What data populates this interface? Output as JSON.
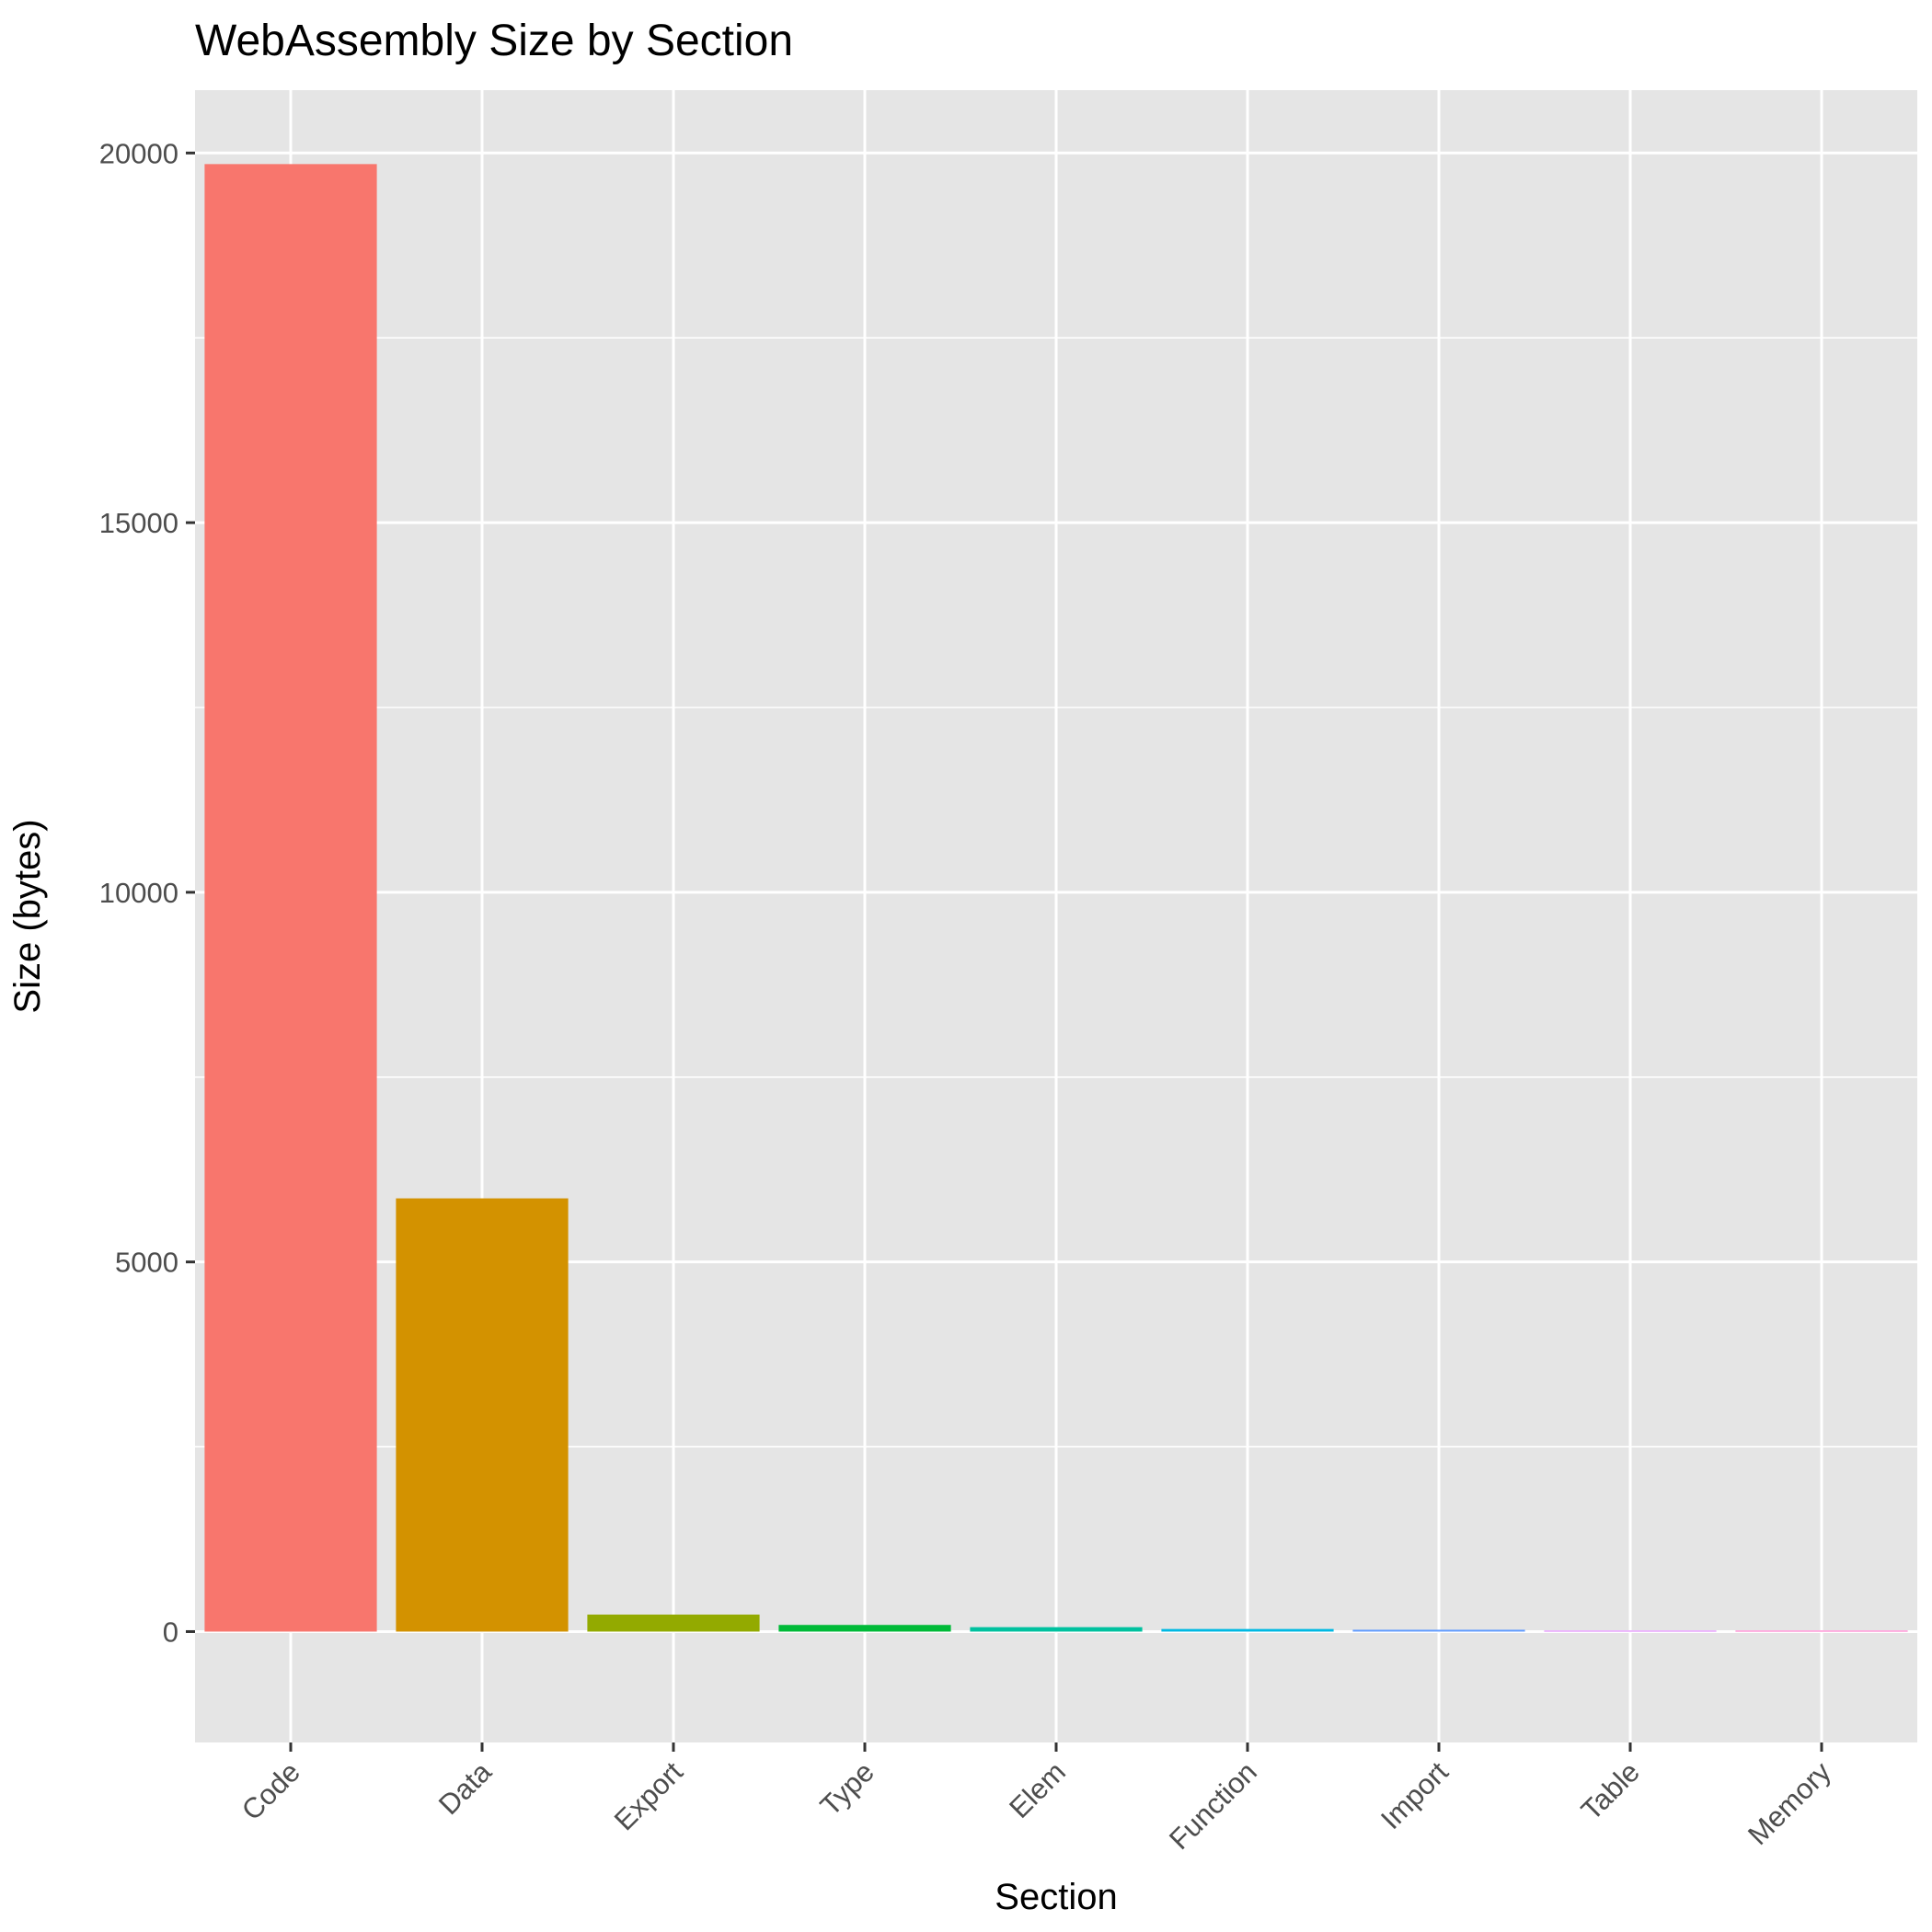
{
  "chart_data": {
    "type": "bar",
    "title": "WebAssembly Size by Section",
    "xlabel": "Section",
    "ylabel": "Size (bytes)",
    "categories": [
      "Code",
      "Data",
      "Export",
      "Type",
      "Elem",
      "Function",
      "Import",
      "Table",
      "Memory"
    ],
    "values": [
      19850,
      5860,
      230,
      90,
      60,
      35,
      25,
      8,
      5
    ],
    "colors": [
      "#F8766D",
      "#D39200",
      "#93AA00",
      "#00BA38",
      "#00C19F",
      "#00B9E3",
      "#619CFF",
      "#DB72FB",
      "#FF61C3"
    ],
    "yticks": [
      0,
      5000,
      10000,
      15000,
      20000
    ],
    "yticks_labels": [
      "0",
      "5000",
      "10000",
      "15000",
      "20000"
    ],
    "ylim": [
      -1500,
      20850
    ],
    "grid": true,
    "legend": "none",
    "panel_background": "#E5E5E5",
    "grid_color": "#FFFFFF"
  }
}
